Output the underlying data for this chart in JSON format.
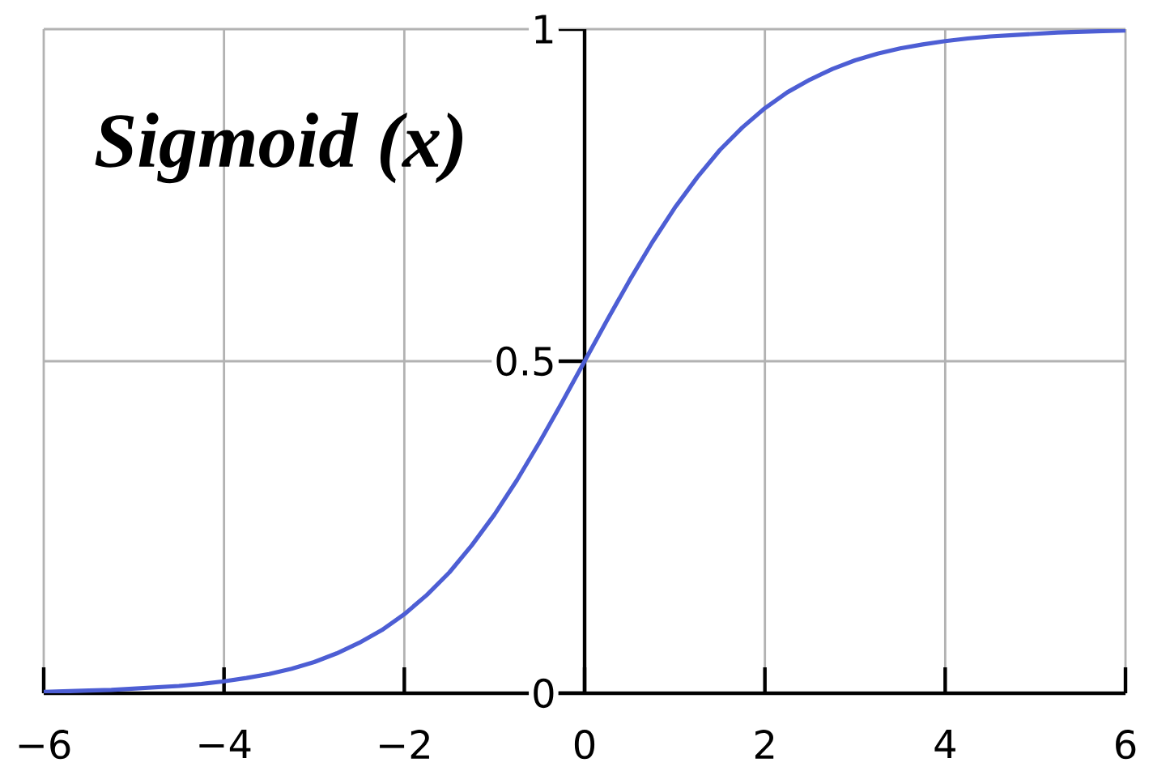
{
  "chart_data": {
    "type": "line",
    "title": "Sigmoid (x)",
    "x": [
      -6,
      -5.75,
      -5.5,
      -5.25,
      -5,
      -4.75,
      -4.5,
      -4.25,
      -4,
      -3.75,
      -3.5,
      -3.25,
      -3,
      -2.75,
      -2.5,
      -2.25,
      -2,
      -1.75,
      -1.5,
      -1.25,
      -1,
      -0.75,
      -0.5,
      -0.25,
      0,
      0.25,
      0.5,
      0.75,
      1,
      1.25,
      1.5,
      1.75,
      2,
      2.25,
      2.5,
      2.75,
      3,
      3.25,
      3.5,
      3.75,
      4,
      4.25,
      4.5,
      4.75,
      5,
      5.25,
      5.5,
      5.75,
      6
    ],
    "series": [
      {
        "color": "#4d5ed4",
        "values": [
          0.002,
          0.003,
          0.004,
          0.005,
          0.007,
          0.009,
          0.011,
          0.014,
          0.018,
          0.023,
          0.029,
          0.037,
          0.047,
          0.06,
          0.076,
          0.095,
          0.119,
          0.148,
          0.182,
          0.223,
          0.269,
          0.321,
          0.378,
          0.438,
          0.5,
          0.562,
          0.622,
          0.679,
          0.731,
          0.777,
          0.818,
          0.852,
          0.881,
          0.905,
          0.924,
          0.94,
          0.953,
          0.963,
          0.971,
          0.977,
          0.982,
          0.986,
          0.989,
          0.991,
          0.993,
          0.995,
          0.996,
          0.997,
          0.998
        ]
      }
    ],
    "xlim": [
      -6,
      6
    ],
    "ylim": [
      0,
      1
    ],
    "xticks": [
      {
        "value": -6,
        "label": "−6"
      },
      {
        "value": -4,
        "label": "−4"
      },
      {
        "value": -2,
        "label": "−2"
      },
      0,
      2,
      4,
      6
    ],
    "yticks": [
      0,
      0.5,
      1
    ],
    "grid": true
  }
}
